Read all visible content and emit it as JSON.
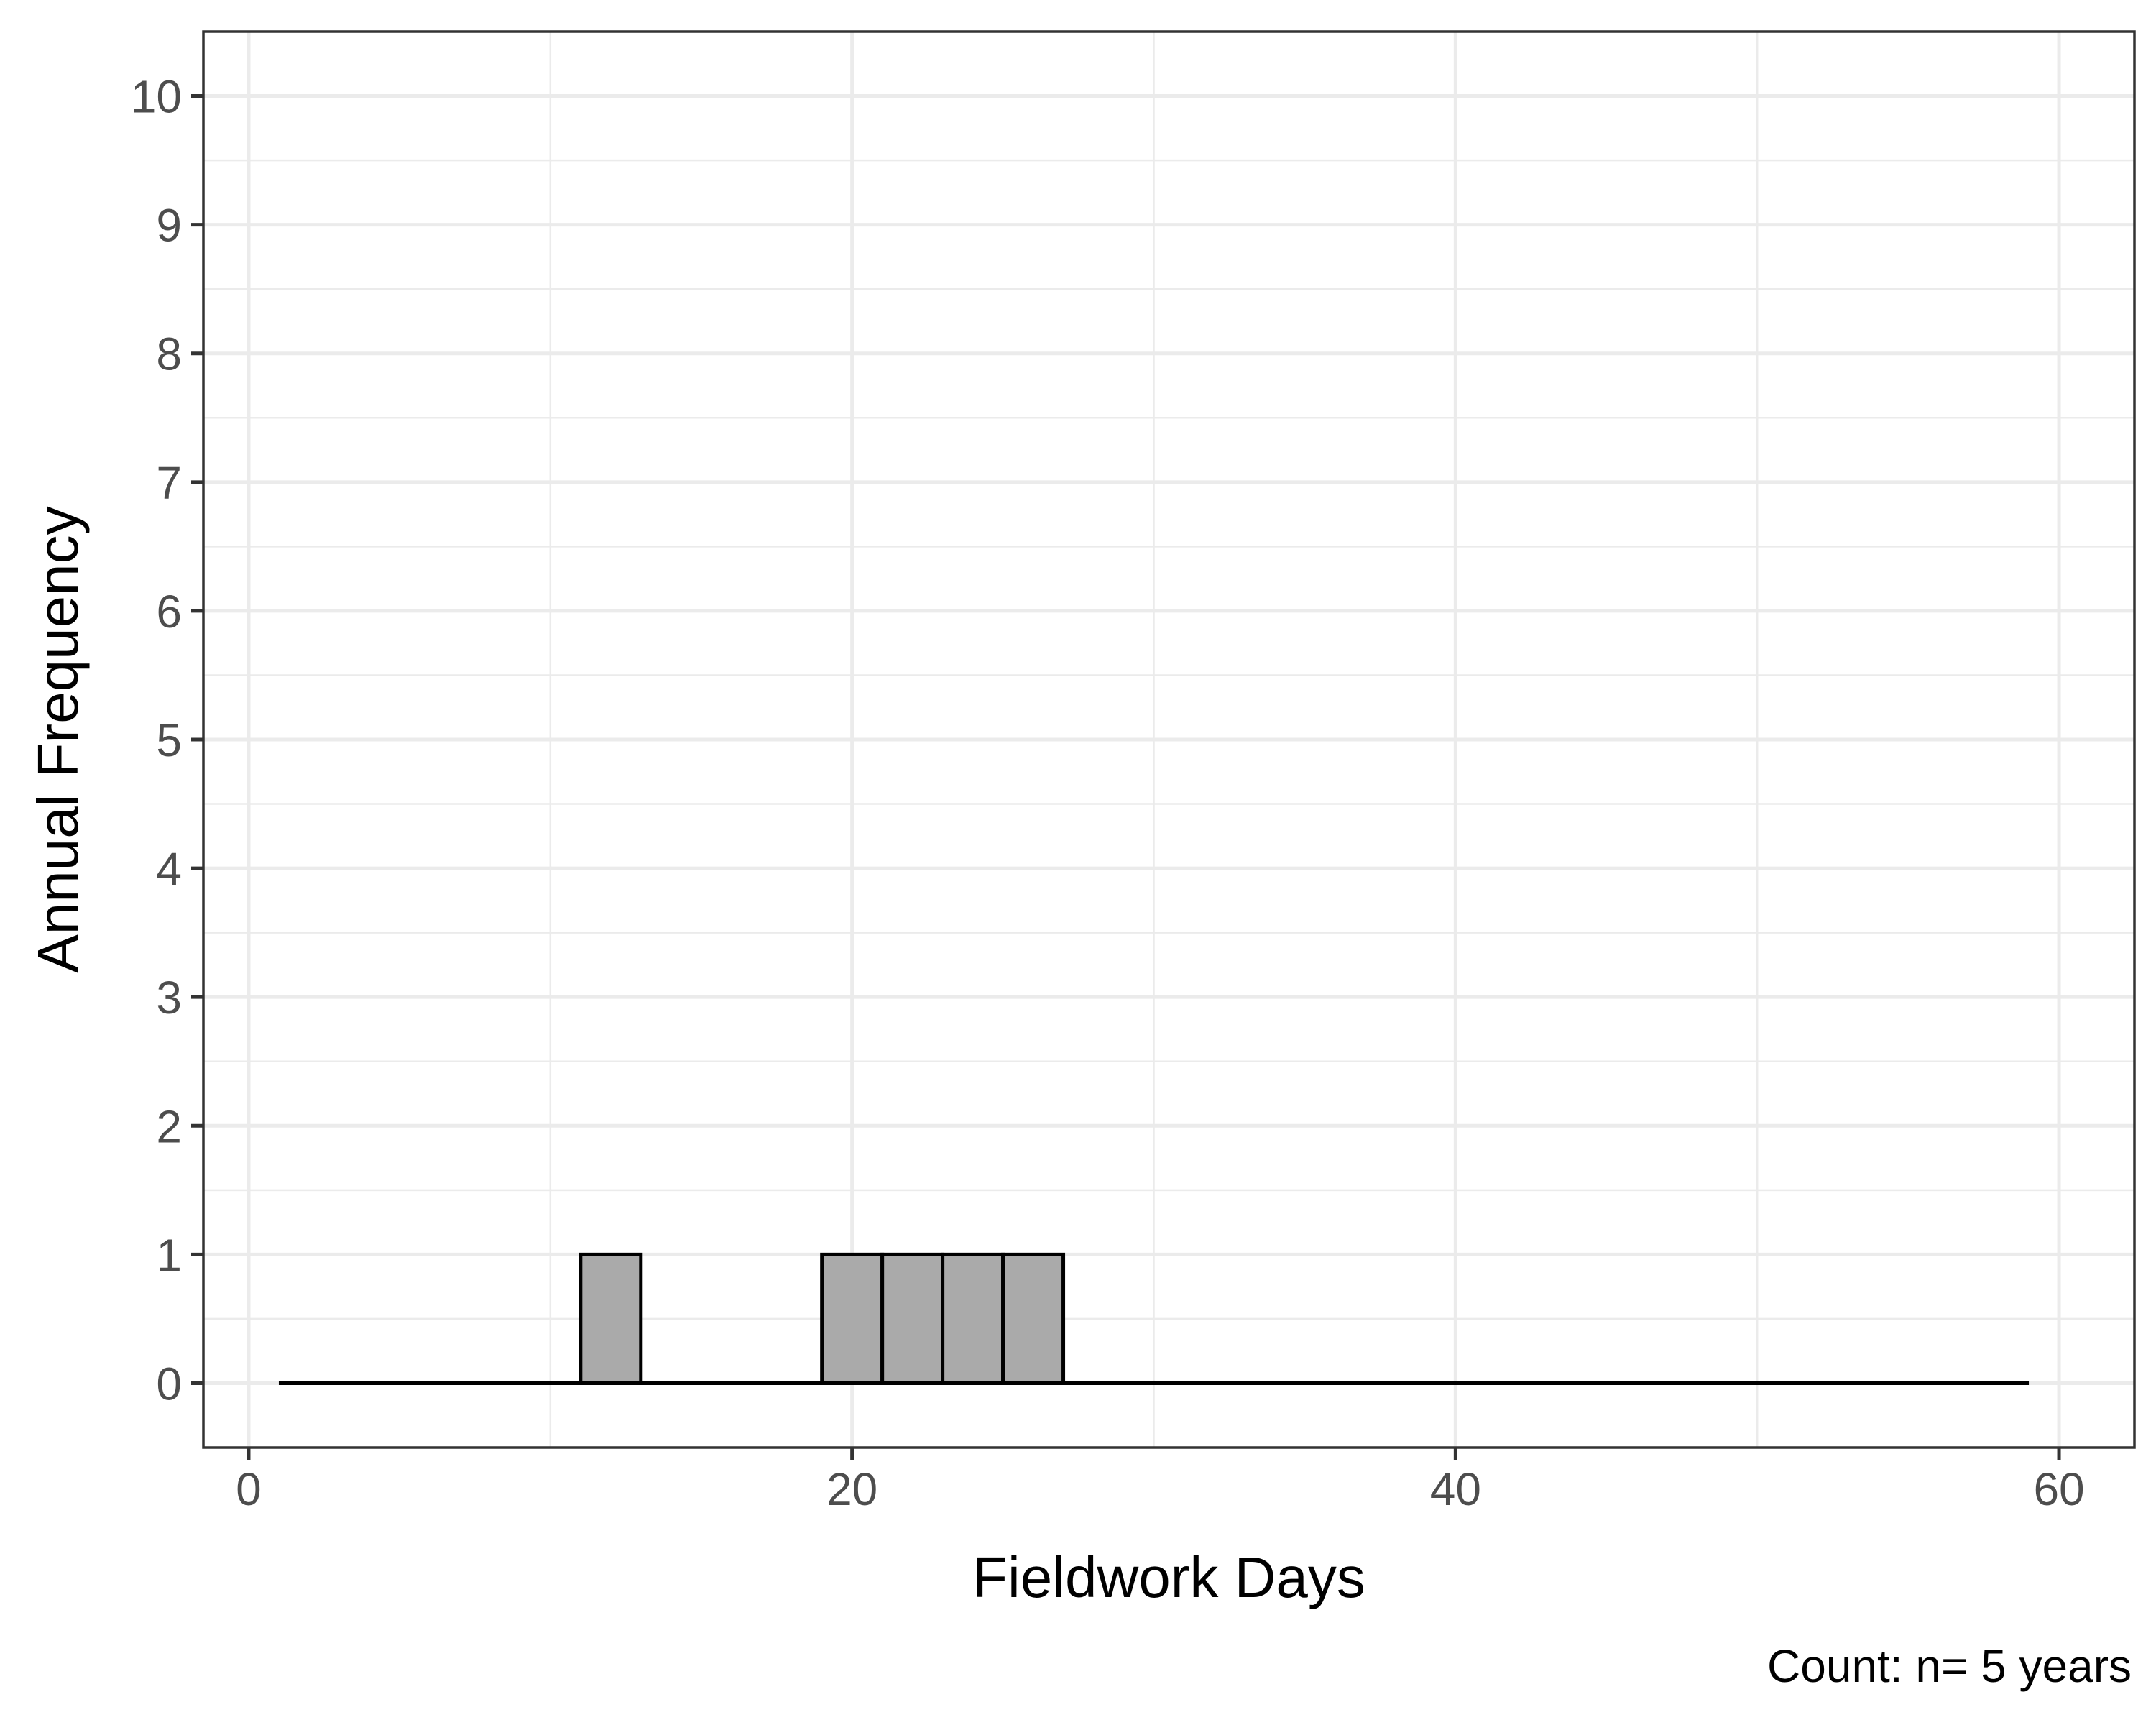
{
  "chart_data": {
    "type": "bar",
    "xlabel": "Fieldwork Days",
    "ylabel": "Annual Frequency",
    "caption": "Count: n= 5 years",
    "xlim": [
      -1.5,
      62.5
    ],
    "ylim": [
      -0.5,
      10.5
    ],
    "x_ticks": [
      0,
      20,
      40,
      60
    ],
    "y_ticks": [
      0,
      1,
      2,
      3,
      4,
      5,
      6,
      7,
      8,
      9,
      10
    ],
    "x_tick_labels": [
      "0",
      "20",
      "40",
      "60"
    ],
    "y_tick_labels": [
      "0",
      "1",
      "2",
      "3",
      "4",
      "5",
      "6",
      "7",
      "8",
      "9",
      "10"
    ],
    "grid": true,
    "bin_width": 2,
    "range": [
      1,
      59
    ],
    "bars": [
      {
        "x_start": 11,
        "x_end": 13,
        "value": 1
      },
      {
        "x_start": 19,
        "x_end": 21,
        "value": 1
      },
      {
        "x_start": 21,
        "x_end": 23,
        "value": 1
      },
      {
        "x_start": 23,
        "x_end": 25,
        "value": 1
      },
      {
        "x_start": 25,
        "x_end": 27,
        "value": 1
      }
    ],
    "bar_fill": "#aaaaaa",
    "bar_outline": "#000000"
  }
}
